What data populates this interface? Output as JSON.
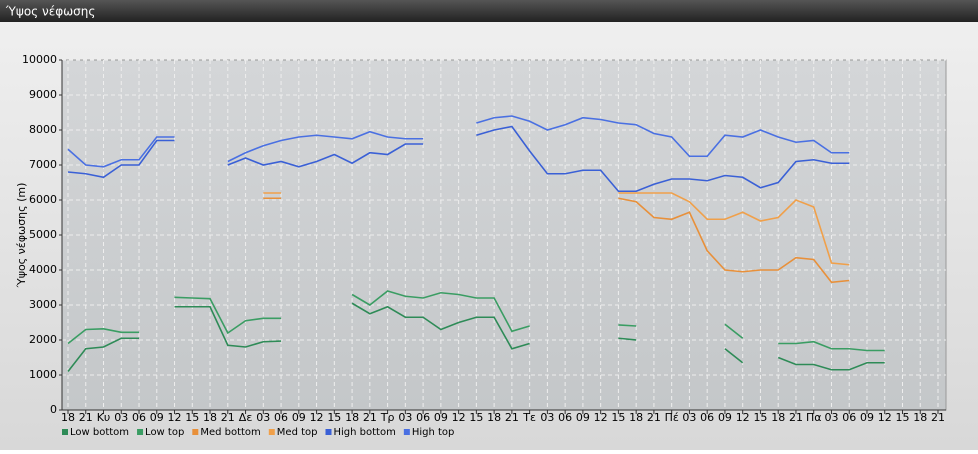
{
  "chart_data": {
    "type": "line",
    "title": "Ύψος νέφωσης",
    "y_label": "Ύψος νέφωσης (m)",
    "categories": [
      "18",
      "21",
      "Κυ",
      "03",
      "06",
      "09",
      "12",
      "15",
      "18",
      "21",
      "Δε",
      "03",
      "06",
      "09",
      "12",
      "15",
      "18",
      "21",
      "Τρ",
      "03",
      "06",
      "09",
      "12",
      "15",
      "18",
      "21",
      "Τε",
      "03",
      "06",
      "09",
      "12",
      "15",
      "18",
      "21",
      "Πέ",
      "03",
      "06",
      "09",
      "12",
      "15",
      "18",
      "21",
      "Πα",
      "03",
      "06",
      "09",
      "12",
      "15",
      "18",
      "21"
    ],
    "series": [
      {
        "name": "Low bottom",
        "color": "#2e8b57",
        "values": [
          1100,
          1750,
          1800,
          2050,
          2050,
          null,
          2950,
          2950,
          2950,
          1850,
          1800,
          1950,
          1970,
          null,
          null,
          null,
          3050,
          2750,
          2950,
          2650,
          2650,
          2300,
          2500,
          2650,
          2650,
          1750,
          1900,
          null,
          null,
          null,
          null,
          2050,
          2000,
          null,
          null,
          null,
          null,
          1750,
          1350,
          null,
          1500,
          1300,
          1300,
          1150,
          1150,
          1350,
          1350,
          null,
          null,
          null
        ]
      },
      {
        "name": "Low top",
        "color": "#3a9d63",
        "values": [
          1900,
          2300,
          2320,
          2220,
          2220,
          null,
          3220,
          3200,
          3180,
          2200,
          2550,
          2620,
          2620,
          null,
          null,
          null,
          3300,
          3000,
          3400,
          3250,
          3200,
          3350,
          3300,
          3200,
          3200,
          2250,
          2400,
          null,
          null,
          null,
          null,
          2430,
          2400,
          null,
          null,
          null,
          null,
          2450,
          2050,
          null,
          1900,
          1900,
          1950,
          1750,
          1750,
          1700,
          1700,
          null,
          null,
          null
        ]
      },
      {
        "name": "Med bottom",
        "color": "#e8903a",
        "values": [
          null,
          null,
          null,
          null,
          null,
          null,
          null,
          null,
          null,
          null,
          null,
          6050,
          6050,
          null,
          null,
          null,
          null,
          null,
          null,
          null,
          null,
          null,
          null,
          null,
          null,
          null,
          null,
          null,
          null,
          null,
          null,
          6050,
          5950,
          5500,
          5450,
          5650,
          4550,
          4000,
          3950,
          4000,
          4000,
          4350,
          4300,
          3650,
          3700,
          null,
          null,
          null,
          null,
          null
        ]
      },
      {
        "name": "Med top",
        "color": "#f0a04a",
        "values": [
          null,
          null,
          null,
          null,
          null,
          null,
          null,
          null,
          null,
          null,
          null,
          6200,
          6200,
          null,
          null,
          null,
          null,
          null,
          null,
          null,
          null,
          null,
          null,
          null,
          null,
          null,
          null,
          null,
          null,
          null,
          null,
          6200,
          6200,
          6200,
          6200,
          5950,
          5450,
          5450,
          5650,
          5400,
          5500,
          6000,
          5800,
          4200,
          4150,
          null,
          null,
          null,
          null,
          null
        ]
      },
      {
        "name": "High bottom",
        "color": "#3a60d6",
        "values": [
          6800,
          6750,
          6650,
          7000,
          7000,
          7700,
          7700,
          null,
          null,
          7000,
          7200,
          7000,
          7100,
          6950,
          7100,
          7300,
          7050,
          7350,
          7300,
          7600,
          7600,
          null,
          null,
          7850,
          8000,
          8100,
          7400,
          6750,
          6750,
          6850,
          6850,
          6250,
          6250,
          6450,
          6600,
          6600,
          6550,
          6700,
          6650,
          6350,
          6500,
          7100,
          7150,
          7050,
          7050,
          null,
          null,
          null,
          null,
          null
        ]
      },
      {
        "name": "High top",
        "color": "#4a70e2",
        "values": [
          7450,
          7000,
          6950,
          7150,
          7150,
          7800,
          7800,
          null,
          null,
          7100,
          7350,
          7550,
          7700,
          7800,
          7850,
          7800,
          7750,
          7950,
          7800,
          7750,
          7750,
          null,
          null,
          8200,
          8350,
          8400,
          8250,
          8000,
          8150,
          8350,
          8300,
          8200,
          8150,
          7900,
          7800,
          7250,
          7250,
          7850,
          7800,
          8000,
          7800,
          7650,
          7700,
          7350,
          7350,
          null,
          null,
          null,
          null,
          null
        ]
      }
    ],
    "ylim": [
      0,
      10000
    ],
    "yticks": [
      0,
      1000,
      2000,
      3000,
      4000,
      5000,
      6000,
      7000,
      8000,
      9000,
      10000
    ],
    "grid": true,
    "legend": "bottom-left"
  }
}
